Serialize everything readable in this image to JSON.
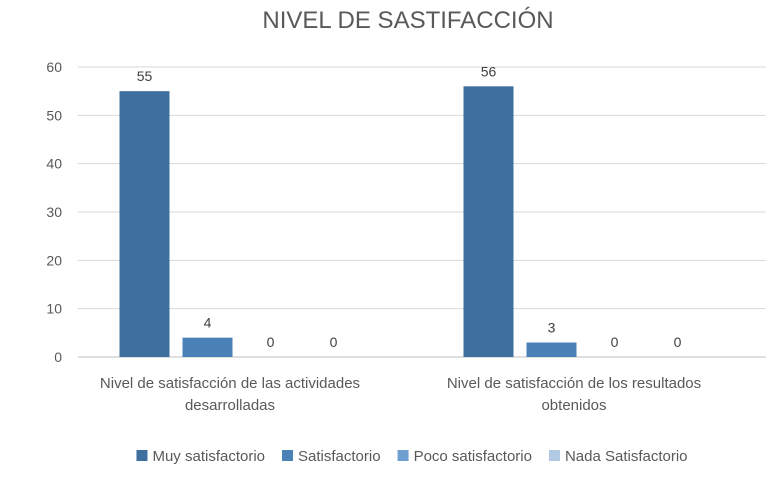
{
  "chart_data": {
    "type": "bar",
    "title": "NIVEL DE SASTIFACCIÓN",
    "xlabel": "",
    "ylabel": "",
    "ylim": [
      0,
      60
    ],
    "yticks": [
      0,
      10,
      20,
      30,
      40,
      50,
      60
    ],
    "grid": true,
    "legend_position": "bottom",
    "categories": [
      [
        "Nivel de satisfacción de las actividades",
        "desarrolladas"
      ],
      [
        "Nivel de satisfacción de los resultados",
        "obtenidos"
      ]
    ],
    "series": [
      {
        "name": "Muy satisfactorio",
        "values": [
          55,
          56
        ],
        "color": "#3e6f9f"
      },
      {
        "name": "Satisfactorio",
        "values": [
          4,
          3
        ],
        "color": "#4a82b7"
      },
      {
        "name": "Poco satisfactorio",
        "values": [
          0,
          0
        ],
        "color": "#6d9fd1"
      },
      {
        "name": "Nada Satisfactorio",
        "values": [
          0,
          0
        ],
        "color": "#b1c9e2"
      }
    ]
  }
}
